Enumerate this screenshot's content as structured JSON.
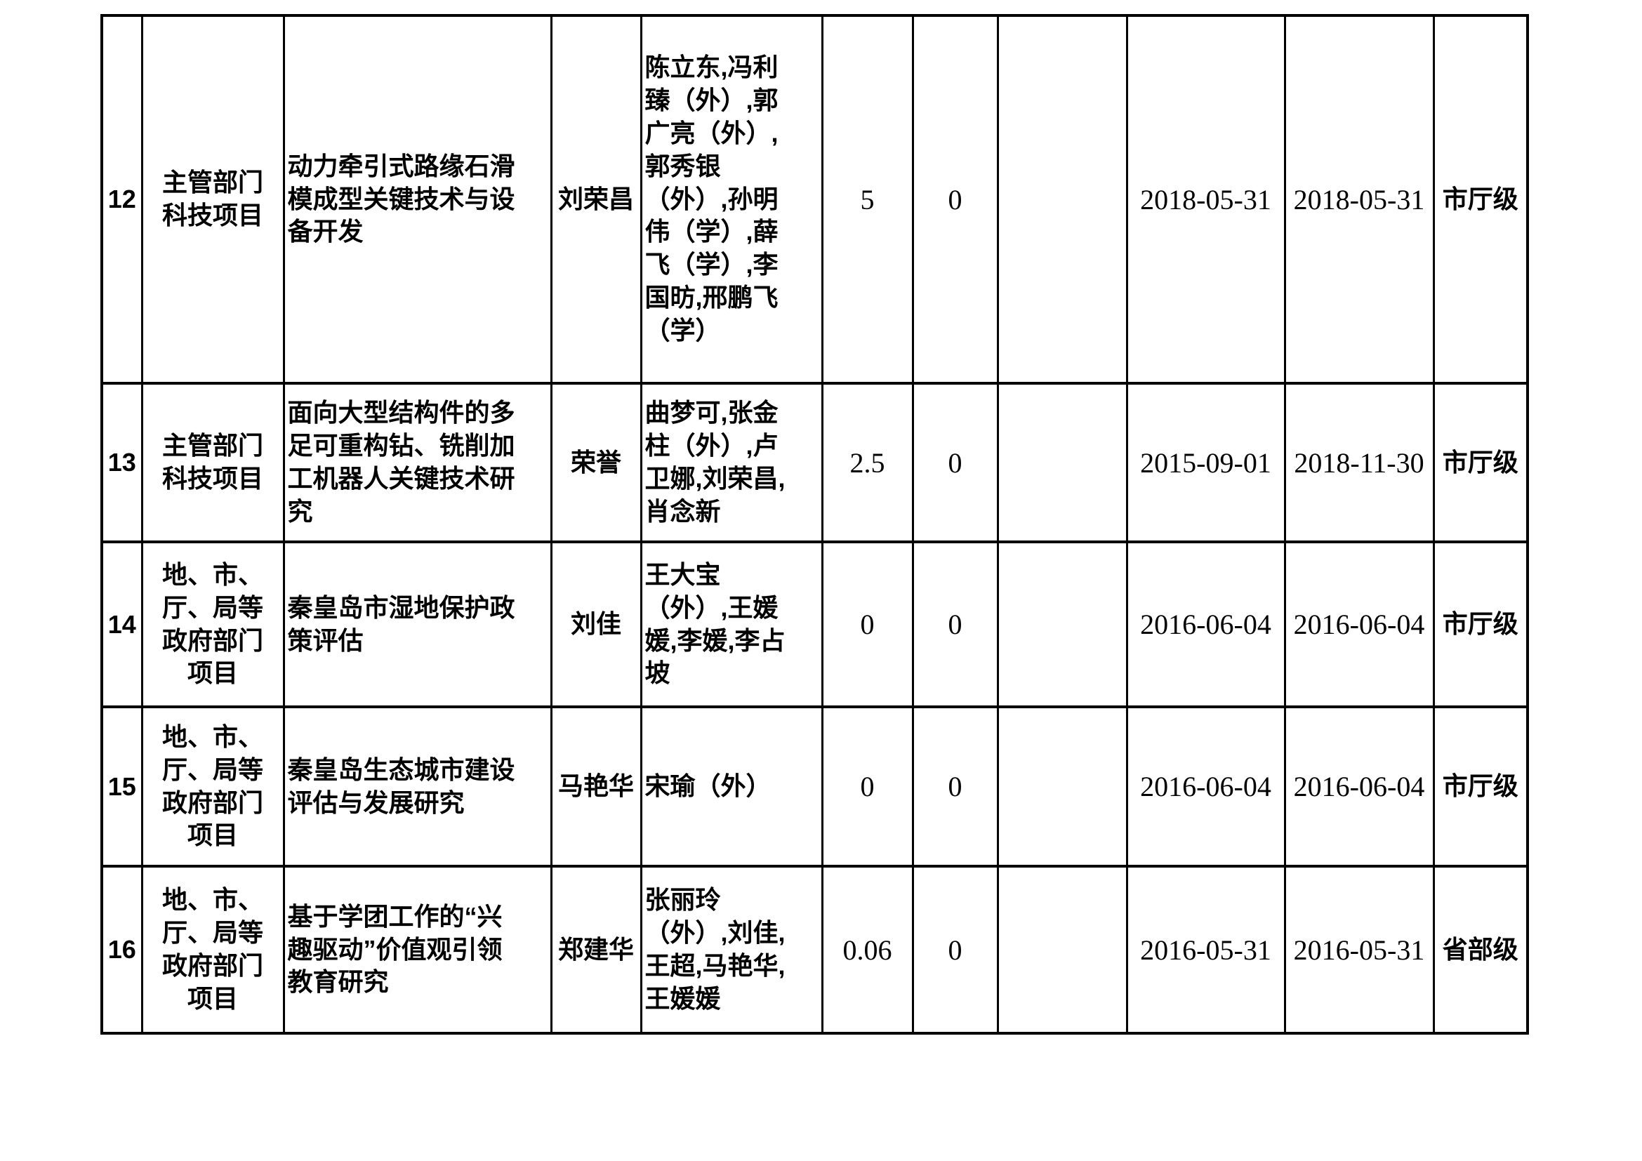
{
  "table": {
    "rows": [
      {
        "index": "12",
        "category": "主管部门\n科技项目",
        "title": "动力牵引式路缘石滑\n模成型关键技术与设\n备开发",
        "leader": "刘荣昌",
        "participants": "陈立东,冯利\n臻（外）,郭\n广亮（外）,\n郭秀银\n（外）,孙明\n伟（学）,薛\n飞（学）,李\n国昉,邢鹏飞\n（学）",
        "amount1": "5",
        "amount2": "0",
        "blank": "",
        "date1": "2018-05-31",
        "date2": "2018-05-31",
        "level": "市厅级"
      },
      {
        "index": "13",
        "category": "主管部门\n科技项目",
        "title": "面向大型结构件的多\n足可重构钻、铣削加\n工机器人关键技术研\n究",
        "leader": "荣誉",
        "participants": "曲梦可,张金\n柱（外）,卢\n卫娜,刘荣昌,\n肖念新",
        "amount1": "2.5",
        "amount2": "0",
        "blank": "",
        "date1": "2015-09-01",
        "date2": "2018-11-30",
        "level": "市厅级"
      },
      {
        "index": "14",
        "category": "地、市、\n厅、局等\n政府部门\n项目",
        "title": "秦皇岛市湿地保护政\n策评估",
        "leader": "刘佳",
        "participants": "王大宝\n（外）,王媛\n媛,李媛,李占\n坡",
        "amount1": "0",
        "amount2": "0",
        "blank": "",
        "date1": "2016-06-04",
        "date2": "2016-06-04",
        "level": "市厅级"
      },
      {
        "index": "15",
        "category": "地、市、\n厅、局等\n政府部门\n项目",
        "title": "秦皇岛生态城市建设\n评估与发展研究",
        "leader": "马艳华",
        "participants": "宋瑜（外）",
        "amount1": "0",
        "amount2": "0",
        "blank": "",
        "date1": "2016-06-04",
        "date2": "2016-06-04",
        "level": "市厅级"
      },
      {
        "index": "16",
        "category": "地、市、\n厅、局等\n政府部门\n项目",
        "title": "基于学团工作的“兴\n趣驱动”价值观引领\n教育研究",
        "leader": "郑建华",
        "participants": "张丽玲\n（外）,刘佳,\n王超,马艳华,\n王媛媛",
        "amount1": "0.06",
        "amount2": "0",
        "blank": "",
        "date1": "2016-05-31",
        "date2": "2016-05-31",
        "level": "省部级"
      }
    ]
  }
}
